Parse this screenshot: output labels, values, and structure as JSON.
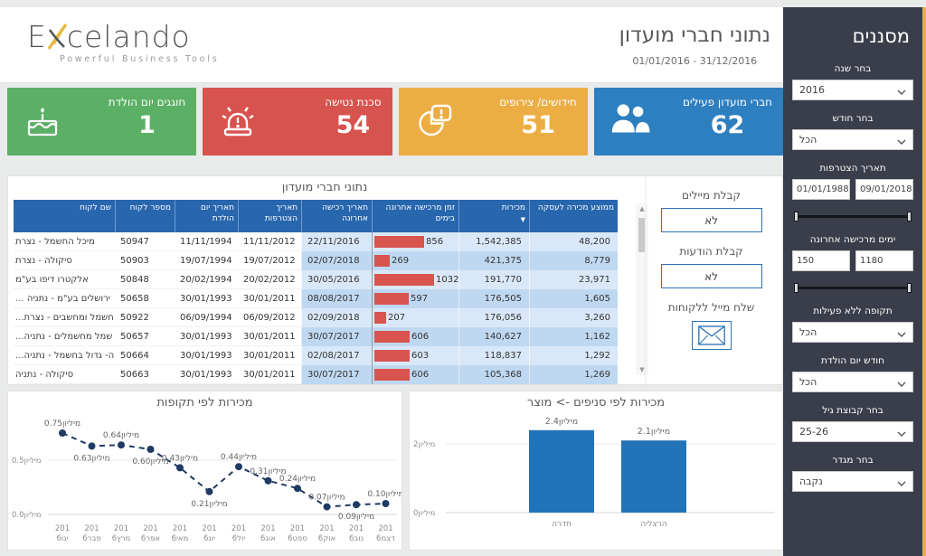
{
  "logo": {
    "name_start": "E",
    "name_end": "celando",
    "tagline": "Powerful Business Tools"
  },
  "header": {
    "title": "נתוני חברי מועדון",
    "date_range": "01/01/2016 - 31/12/2016"
  },
  "kpis": [
    {
      "id": "birthdays",
      "label": "חוגגים יום הולדת",
      "value": "1",
      "color": "#5bb065",
      "icon": "cake-icon"
    },
    {
      "id": "churn-risk",
      "label": "סכנת נטישה",
      "value": "54",
      "color": "#d6534e",
      "icon": "siren-icon"
    },
    {
      "id": "renewals",
      "label": "חידושים/ צירופים",
      "value": "51",
      "color": "#ecae44",
      "icon": "pie-alert-icon"
    },
    {
      "id": "active-members",
      "label": "חברי מועדון פעילים",
      "value": "62",
      "color": "#2e7fc0",
      "icon": "people-icon"
    }
  ],
  "table": {
    "title": "נתוני חברי מועדון",
    "columns": [
      "שם לקוח",
      "מספר לקוח",
      "תאריך יום הולדת",
      "תאריך הצטרפות",
      "תאריך רכישה אחרונה",
      "זמן מרכישה אחרונה בימים",
      "מכירות",
      "ממוצע מכירה לעסקה"
    ],
    "sort_column": "מכירות",
    "bar_max": 1032,
    "rows": [
      {
        "name": "מיכל החשמל - נצרת",
        "truncated": false,
        "id": "50947",
        "birth": "11/11/1994",
        "join": "11/11/2012",
        "last": "22/11/2016",
        "days": 856,
        "sales": "1,542,385",
        "avg": "48,200"
      },
      {
        "name": "סיקולה - נצרת",
        "truncated": false,
        "id": "50903",
        "birth": "19/07/1994",
        "join": "19/07/2012",
        "last": "02/07/2018",
        "days": 269,
        "sales": "421,375",
        "avg": "8,779"
      },
      {
        "name": "אלקטרו דיפו בע\"מ",
        "truncated": false,
        "id": "50848",
        "birth": "20/02/1994",
        "join": "20/02/2012",
        "last": "30/05/2016",
        "days": 1032,
        "sales": "191,770",
        "avg": "23,971"
      },
      {
        "name": "ירושלים בע\"מ - נתניה",
        "truncated": true,
        "id": "50658",
        "birth": "30/01/1993",
        "join": "30/01/2011",
        "last": "08/08/2017",
        "days": 597,
        "sales": "176,505",
        "avg": "1,605"
      },
      {
        "name": "חשמל ומחשבים - נצרת",
        "truncated": true,
        "id": "50922",
        "birth": "06/09/1994",
        "join": "06/09/2012",
        "last": "02/09/2018",
        "days": 207,
        "sales": "176,056",
        "avg": "3,260"
      },
      {
        "name": "שמל מחשמלים - נתניה",
        "truncated": true,
        "id": "50657",
        "birth": "30/01/1993",
        "join": "30/01/2011",
        "last": "30/07/2017",
        "days": 606,
        "sales": "140,627",
        "avg": "1,162"
      },
      {
        "name": "ה- גדול בחשמל - נתניה",
        "truncated": true,
        "id": "50664",
        "birth": "30/01/1993",
        "join": "30/01/2011",
        "last": "02/08/2017",
        "days": 603,
        "sales": "118,837",
        "avg": "1,292"
      },
      {
        "name": "סיקולה - נתניה",
        "truncated": false,
        "id": "50663",
        "birth": "30/01/1993",
        "join": "30/01/2011",
        "last": "30/07/2017",
        "days": 606,
        "sales": "105,368",
        "avg": "1,269"
      }
    ]
  },
  "email_panel": {
    "mails_label": "קבלת מיילים",
    "mails_value": "לא",
    "messages_label": "קבלת הודעות",
    "messages_value": "לא",
    "send_label": "שלח מייל ללקוחות",
    "envelope_icon": "envelope-icon"
  },
  "chart_data": [
    {
      "type": "line",
      "title": "מכירות לפי תקופות",
      "unit": "מיליון",
      "categories": [
        {
          "year": "201",
          "month": "6ינו"
        },
        {
          "year": "201",
          "month": "6פבר"
        },
        {
          "year": "201",
          "month": "6מרץ"
        },
        {
          "year": "201",
          "month": "6אפר"
        },
        {
          "year": "201",
          "month": "6מאי"
        },
        {
          "year": "201",
          "month": "6יונ"
        },
        {
          "year": "201",
          "month": "6יול"
        },
        {
          "year": "201",
          "month": "6אוג"
        },
        {
          "year": "201",
          "month": "6ספט"
        },
        {
          "year": "201",
          "month": "6אוק"
        },
        {
          "year": "201",
          "month": "6נוב"
        },
        {
          "year": "201",
          "month": "6דצמ"
        }
      ],
      "values": [
        0.75,
        0.63,
        0.64,
        0.6,
        0.43,
        0.21,
        0.44,
        0.31,
        0.24,
        0.07,
        0.09,
        0.1
      ],
      "point_labels": [
        "0.75מיליון",
        "0.63מיליון",
        "0.64מיליון",
        "0.60מיליון",
        "0.43מיליון",
        "0.21מיליון",
        "0.44מיליון",
        "0.31מיליון",
        "0.24מיליון",
        "0.07מיליון",
        "0.09מיליון",
        "0.10מיליון"
      ],
      "label_side": [
        "above",
        "below",
        "above",
        "below",
        "above",
        "below",
        "above",
        "above",
        "above",
        "above",
        "below",
        "above"
      ],
      "yticks": [
        {
          "v": 0.0,
          "label": "0.0מיליון"
        },
        {
          "v": 0.5,
          "label": "0.5מיליון"
        }
      ],
      "ylim": [
        0,
        0.8
      ],
      "line_color": "#1f3a63",
      "grid": true
    },
    {
      "type": "bar",
      "title": "מכירות לפי סניפים -> מוצר",
      "unit": "מיליון",
      "categories": [
        "חדרה",
        "הרצליה"
      ],
      "values": [
        2.4,
        2.1
      ],
      "bar_labels": [
        "2.4מיליון",
        "2.1מיליון"
      ],
      "yticks": [
        {
          "v": 0,
          "label": "מיליון0"
        },
        {
          "v": 2,
          "label": "מיליון2"
        }
      ],
      "ylim": [
        0,
        3
      ],
      "bar_color": "#2373b8",
      "grid": true
    }
  ],
  "sidebar": {
    "title": "מסננים",
    "filters": [
      {
        "type": "select",
        "name": "year",
        "label": "בחר שנה",
        "value": "2016"
      },
      {
        "type": "select",
        "name": "month",
        "label": "בחר חודש",
        "value": "הכל"
      },
      {
        "type": "range",
        "name": "join-date",
        "label": "תאריך הצטרפות",
        "from": "01/01/1988",
        "to": "09/01/2018"
      },
      {
        "type": "range",
        "name": "days-last-purchase",
        "label": "ימים מרכישה אחרונה",
        "from": "150",
        "to": "1180"
      },
      {
        "type": "select",
        "name": "inactive-period",
        "label": "תקופה ללא פעילות",
        "value": "הכל"
      },
      {
        "type": "select",
        "name": "birthday-month",
        "label": "חודש יום הולדת",
        "value": "הכל"
      },
      {
        "type": "select",
        "name": "age-group",
        "label": "בחר קבוצת גיל",
        "value": "25-26"
      },
      {
        "type": "select",
        "name": "gender",
        "label": "בחר מגדר",
        "value": "נקבה"
      }
    ]
  }
}
